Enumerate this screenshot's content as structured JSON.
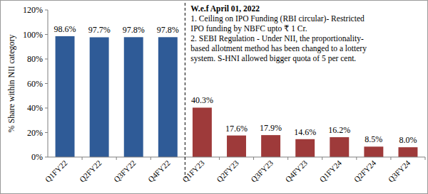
{
  "chart_data": {
    "type": "bar",
    "y_label": "% Share within NII category",
    "categories": [
      "Q1FY22",
      "Q2FY22",
      "Q3FY22",
      "Q4FY22",
      "Q1FY23",
      "Q2FY23",
      "Q3FY23",
      "Q4FY23",
      "Q1FY24",
      "Q2FY24",
      "Q3FY24"
    ],
    "values": [
      98.6,
      97.7,
      97.8,
      97.8,
      40.3,
      17.6,
      17.9,
      14.6,
      16.2,
      8.5,
      8.0
    ],
    "value_labels": [
      "98.6%",
      "97.7%",
      "97.8%",
      "97.8%",
      "40.3%",
      "17.6%",
      "17.9%",
      "14.6%",
      "16.2%",
      "8.5%",
      "8.0%"
    ],
    "colors": [
      "#2f5b97",
      "#2f5b97",
      "#2f5b97",
      "#2f5b97",
      "#9e3a3a",
      "#9e3a3a",
      "#9e3a3a",
      "#9e3a3a",
      "#9e3a3a",
      "#9e3a3a",
      "#9e3a3a"
    ],
    "ylim": [
      0,
      120
    ],
    "yticks": [
      {
        "value": 0,
        "label": "0%"
      },
      {
        "value": 20,
        "label": "20%"
      },
      {
        "value": 40,
        "label": "40%"
      },
      {
        "value": 60,
        "label": "60%"
      },
      {
        "value": 80,
        "label": "80%"
      },
      {
        "value": 100,
        "label": "100%"
      },
      {
        "value": 120,
        "label": "120%"
      }
    ],
    "grid": false,
    "data_labels": true,
    "annotations": [
      "W.e.f April 01, 2022",
      "1. Ceiling on IPO Funding (RBI circular)- Restricted",
      "IPO funding by NBFC upto ₹ 1 Cr.",
      "2. SEBI Regulation - Under NII, the proportionality-",
      "based allotment method has been changed to a lottery",
      "system. S-HNI allowed bigger quota of 5 per cent."
    ]
  }
}
